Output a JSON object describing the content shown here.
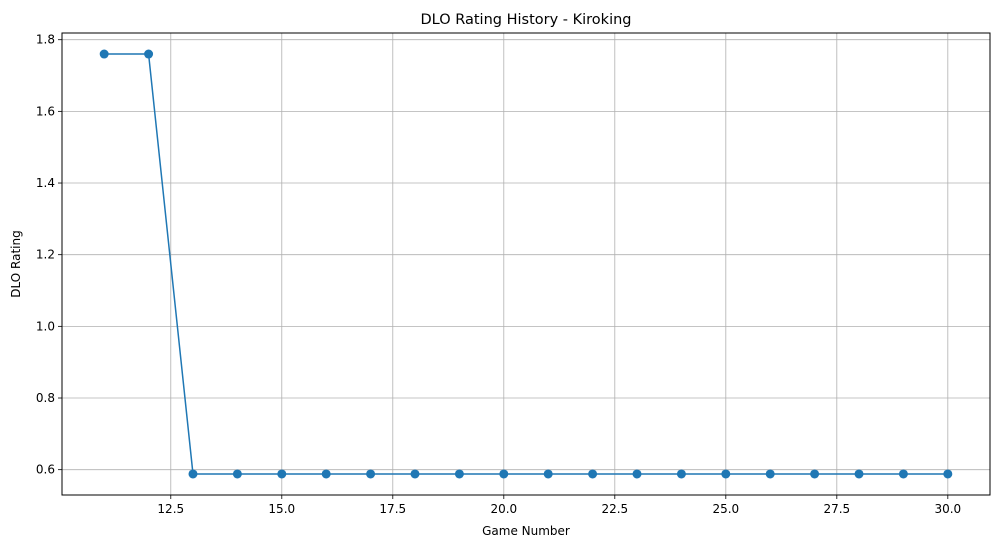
{
  "chart_data": {
    "type": "line",
    "title": "DLO Rating History - Kiroking",
    "xlabel": "Game Number",
    "ylabel": "DLO Rating",
    "xlim": [
      10.05,
      30.95
    ],
    "ylim": [
      0.5293,
      1.8187
    ],
    "xticks": [
      12.5,
      15.0,
      17.5,
      20.0,
      22.5,
      25.0,
      27.5,
      30.0
    ],
    "xtick_labels": [
      "12.5",
      "15.0",
      "17.5",
      "20.0",
      "22.5",
      "25.0",
      "27.5",
      "30.0"
    ],
    "yticks": [
      0.6,
      0.8,
      1.0,
      1.2,
      1.4,
      1.6,
      1.8
    ],
    "ytick_labels": [
      "0.6",
      "0.8",
      "1.0",
      "1.2",
      "1.4",
      "1.6",
      "1.8"
    ],
    "grid": true,
    "marker": "circle",
    "color": "#1f77b4",
    "x": [
      11,
      12,
      13,
      14,
      15,
      16,
      17,
      18,
      19,
      20,
      21,
      22,
      23,
      24,
      25,
      26,
      27,
      28,
      29,
      30
    ],
    "y": [
      1.76,
      1.76,
      0.588,
      0.588,
      0.588,
      0.588,
      0.588,
      0.588,
      0.588,
      0.588,
      0.588,
      0.588,
      0.588,
      0.588,
      0.588,
      0.588,
      0.588,
      0.588,
      0.588,
      0.588
    ]
  }
}
